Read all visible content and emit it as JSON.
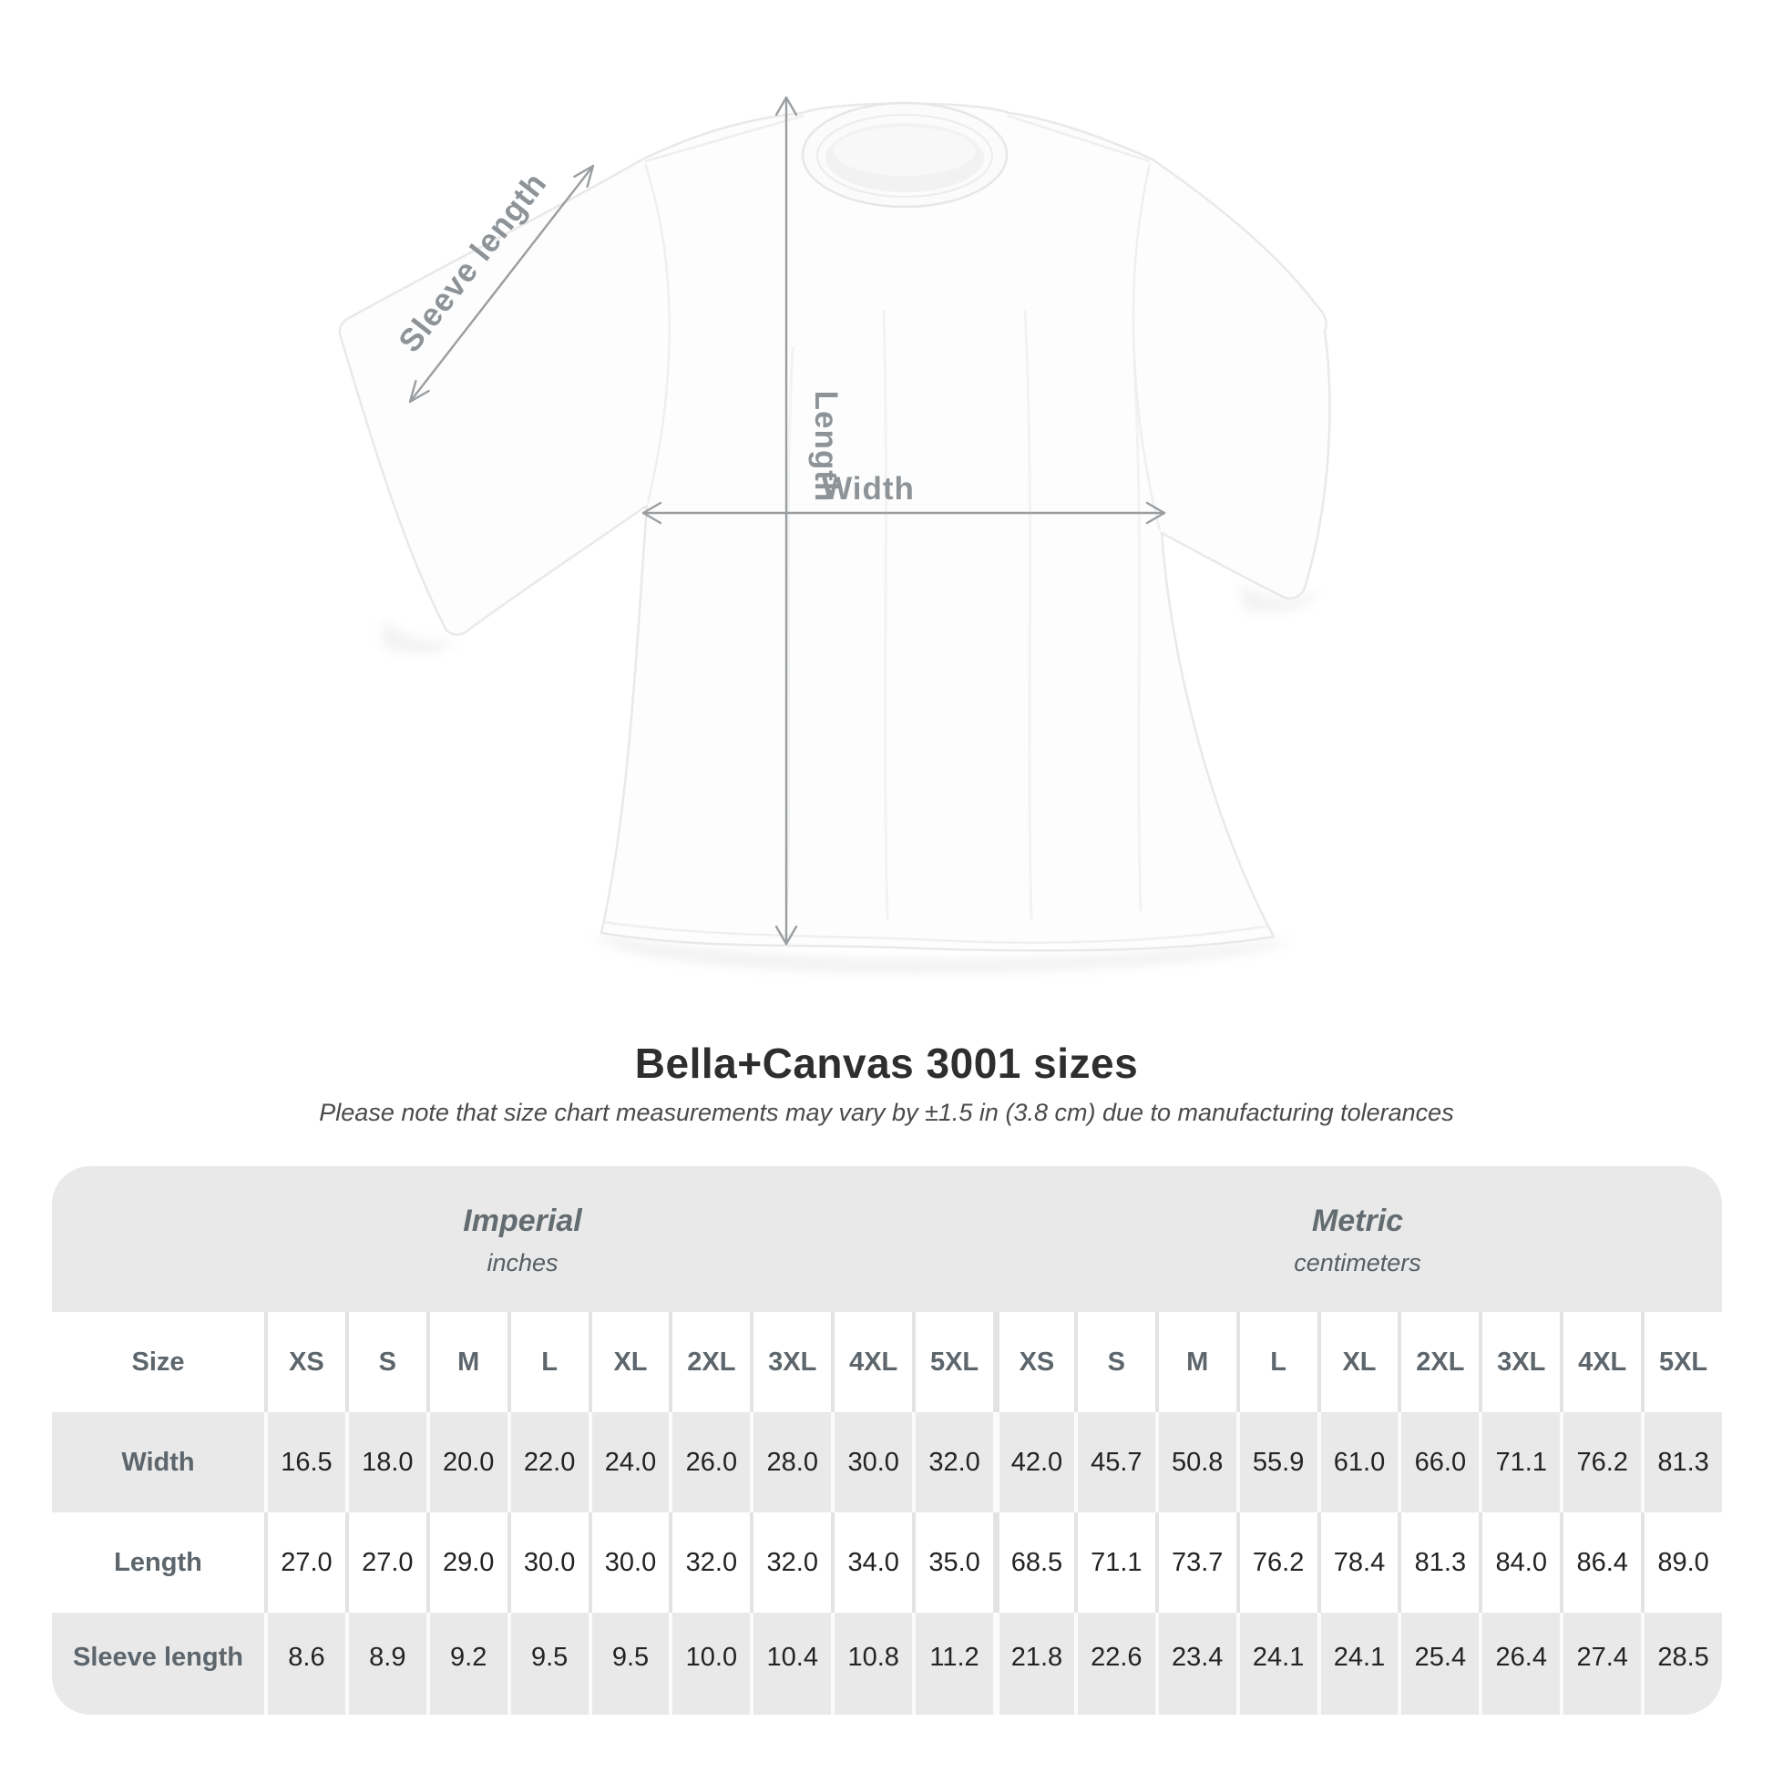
{
  "diagram": {
    "sleeve_length_label": "Sleeve length",
    "length_label": "Length",
    "width_label": "Width"
  },
  "heading": {
    "title": "Bella+Canvas 3001 sizes",
    "subtitle": "Please note that size chart measurements may vary by ±1.5 in (3.8 cm) due to manufacturing tolerances"
  },
  "table": {
    "imperial_header": "Imperial",
    "imperial_unit": "inches",
    "metric_header": "Metric",
    "metric_unit": "centimeters",
    "size_header": "Size",
    "sizes": [
      "XS",
      "S",
      "M",
      "L",
      "XL",
      "2XL",
      "3XL",
      "4XL",
      "5XL"
    ],
    "rows": [
      {
        "label": "Width",
        "imperial": [
          "16.5",
          "18.0",
          "20.0",
          "22.0",
          "24.0",
          "26.0",
          "28.0",
          "30.0",
          "32.0"
        ],
        "metric": [
          "42.0",
          "45.7",
          "50.8",
          "55.9",
          "61.0",
          "66.0",
          "71.1",
          "76.2",
          "81.3"
        ]
      },
      {
        "label": "Length",
        "imperial": [
          "27.0",
          "27.0",
          "29.0",
          "30.0",
          "30.0",
          "32.0",
          "32.0",
          "34.0",
          "35.0"
        ],
        "metric": [
          "68.5",
          "71.1",
          "73.7",
          "76.2",
          "78.4",
          "81.3",
          "84.0",
          "86.4",
          "89.0"
        ]
      },
      {
        "label": "Sleeve length",
        "imperial": [
          "8.6",
          "8.9",
          "9.2",
          "9.5",
          "9.5",
          "10.0",
          "10.4",
          "10.8",
          "11.2"
        ],
        "metric": [
          "21.8",
          "22.6",
          "23.4",
          "24.1",
          "24.1",
          "25.4",
          "26.4",
          "27.4",
          "28.5"
        ]
      }
    ]
  },
  "colors": {
    "table_background": "#e9e9e9",
    "row_white": "#ffffff",
    "label_text": "#5d666c",
    "data_text": "#232323",
    "annotation_gray": "#9a9ea1",
    "title_text": "#2e2e2e"
  },
  "chart_data": {
    "type": "table",
    "title": "Bella+Canvas 3001 sizes",
    "note": "Please note that size chart measurements may vary by ±1.5 in (3.8 cm) due to manufacturing tolerances",
    "sections": [
      {
        "name": "Imperial",
        "unit": "inches"
      },
      {
        "name": "Metric",
        "unit": "centimeters"
      }
    ],
    "columns": [
      "Size",
      "XS",
      "S",
      "M",
      "L",
      "XL",
      "2XL",
      "3XL",
      "4XL",
      "5XL",
      "XS",
      "S",
      "M",
      "L",
      "XL",
      "2XL",
      "3XL",
      "4XL",
      "5XL"
    ],
    "rows": [
      [
        "Width",
        16.5,
        18.0,
        20.0,
        22.0,
        24.0,
        26.0,
        28.0,
        30.0,
        32.0,
        42.0,
        45.7,
        50.8,
        55.9,
        61.0,
        66.0,
        71.1,
        76.2,
        81.3
      ],
      [
        "Length",
        27.0,
        27.0,
        29.0,
        30.0,
        30.0,
        32.0,
        32.0,
        34.0,
        35.0,
        68.5,
        71.1,
        73.7,
        76.2,
        78.4,
        81.3,
        84.0,
        86.4,
        89.0
      ],
      [
        "Sleeve length",
        8.6,
        8.9,
        9.2,
        9.5,
        9.5,
        10.0,
        10.4,
        10.8,
        11.2,
        21.8,
        22.6,
        23.4,
        24.1,
        24.1,
        25.4,
        26.4,
        27.4,
        28.5
      ]
    ]
  }
}
